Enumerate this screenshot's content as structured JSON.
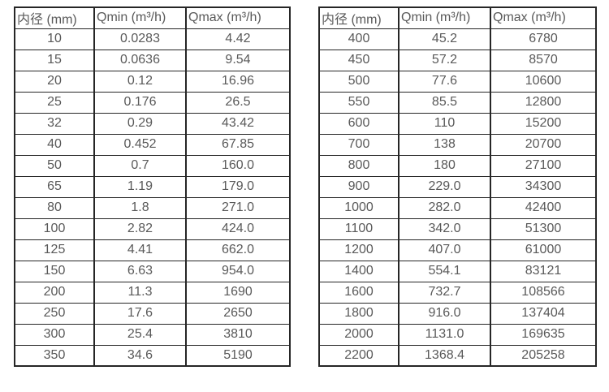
{
  "page": {
    "background_color": "#ffffff",
    "border_color": "#262626",
    "text_color": "#595959"
  },
  "tables": [
    {
      "name": "flow-table-small-diameters",
      "headers": [
        "内径 (mm)",
        "Qmin (m³/h)",
        "Qmax (m³/h)"
      ],
      "rows": [
        [
          "10",
          "0.0283",
          "4.42"
        ],
        [
          "15",
          "0.0636",
          "9.54"
        ],
        [
          "20",
          "0.12",
          "16.96"
        ],
        [
          "25",
          "0.176",
          "26.5"
        ],
        [
          "32",
          "0.29",
          "43.42"
        ],
        [
          "40",
          "0.452",
          "67.85"
        ],
        [
          "50",
          "0.7",
          "160.0"
        ],
        [
          "65",
          "1.19",
          "179.0"
        ],
        [
          "80",
          "1.8",
          "271.0"
        ],
        [
          "100",
          "2.82",
          "424.0"
        ],
        [
          "125",
          "4.41",
          "662.0"
        ],
        [
          "150",
          "6.63",
          "954.0"
        ],
        [
          "200",
          "11.3",
          "1690"
        ],
        [
          "250",
          "17.6",
          "2650"
        ],
        [
          "300",
          "25.4",
          "3810"
        ],
        [
          "350",
          "34.6",
          "5190"
        ]
      ]
    },
    {
      "name": "flow-table-large-diameters",
      "headers": [
        "内径 (mm)",
        "Qmin (m³/h)",
        "Qmax (m³/h)"
      ],
      "rows": [
        [
          "400",
          "45.2",
          "6780"
        ],
        [
          "450",
          "57.2",
          "8570"
        ],
        [
          "500",
          "77.6",
          "10600"
        ],
        [
          "550",
          "85.5",
          "12800"
        ],
        [
          "600",
          "110",
          "15200"
        ],
        [
          "700",
          "138",
          "20700"
        ],
        [
          "800",
          "180",
          "27100"
        ],
        [
          "900",
          "229.0",
          "34300"
        ],
        [
          "1000",
          "282.0",
          "42400"
        ],
        [
          "1100",
          "342.0",
          "51300"
        ],
        [
          "1200",
          "407.0",
          "61000"
        ],
        [
          "1400",
          "554.1",
          "83121"
        ],
        [
          "1600",
          "732.7",
          "108566"
        ],
        [
          "1800",
          "916.0",
          "137404"
        ],
        [
          "2000",
          "1131.0",
          "169635"
        ],
        [
          "2200",
          "1368.4",
          "205258"
        ]
      ]
    }
  ]
}
